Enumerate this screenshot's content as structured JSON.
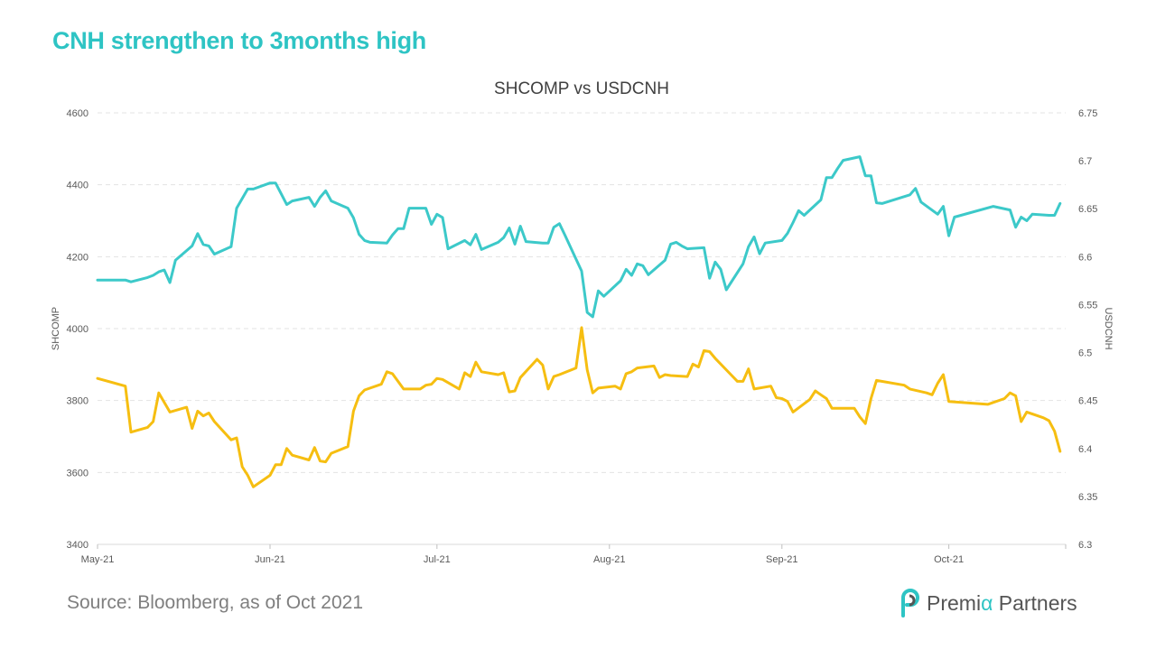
{
  "slide": {
    "title": "CNH strengthen to 3months high",
    "source": "Source:  Bloomberg,  as of Oct 2021",
    "logo": {
      "part1": "Premi",
      "alpha": "α",
      "part2": " Partners"
    }
  },
  "chart_data": {
    "type": "line",
    "title": "SHCOMP vs USDCNH",
    "ylabel": "SHCOMP",
    "y2label": "USDCNH",
    "ylim": [
      3400,
      4600
    ],
    "y2lim": [
      6.3,
      6.75
    ],
    "yticks": [
      "3400",
      "3600",
      "3800",
      "4000",
      "4200",
      "4400",
      "4600"
    ],
    "y2ticks": [
      "6.3",
      "6.35",
      "6.4",
      "6.45",
      "6.5",
      "6.55",
      "6.6",
      "6.65",
      "6.7",
      "6.75"
    ],
    "xlim": [
      "2021-05-01",
      "2021-10-22"
    ],
    "xticks": [
      {
        "date": "2021-05-01",
        "label": "May-21"
      },
      {
        "date": "2021-06-01",
        "label": "Jun-21"
      },
      {
        "date": "2021-07-01",
        "label": "Jul-21"
      },
      {
        "date": "2021-08-01",
        "label": "Aug-21"
      },
      {
        "date": "2021-09-01",
        "label": "Sep-21"
      },
      {
        "date": "2021-10-01",
        "label": "Oct-21"
      }
    ],
    "grid": true,
    "colors": {
      "SHCOMP": "#3CC9C9",
      "USDCNH": "#F6BE11"
    },
    "series": [
      {
        "key": "SHCOMP",
        "axis": "left",
        "points": [
          [
            "2021-05-01",
            4135
          ],
          [
            "2021-05-06",
            4135
          ],
          [
            "2021-05-07",
            4130
          ],
          [
            "2021-05-10",
            4142
          ],
          [
            "2021-05-11",
            4148
          ],
          [
            "2021-05-12",
            4158
          ],
          [
            "2021-05-13",
            4163
          ],
          [
            "2021-05-14",
            4128
          ],
          [
            "2021-05-15",
            4190
          ],
          [
            "2021-05-18",
            4230
          ],
          [
            "2021-05-19",
            4264
          ],
          [
            "2021-05-20",
            4234
          ],
          [
            "2021-05-21",
            4230
          ],
          [
            "2021-05-22",
            4207
          ],
          [
            "2021-05-25",
            4228
          ],
          [
            "2021-05-26",
            4335
          ],
          [
            "2021-05-28",
            4388
          ],
          [
            "2021-05-29",
            4388
          ],
          [
            "2021-06-01",
            4405
          ],
          [
            "2021-06-02",
            4405
          ],
          [
            "2021-06-03",
            4375
          ],
          [
            "2021-06-04",
            4345
          ],
          [
            "2021-06-05",
            4355
          ],
          [
            "2021-06-08",
            4365
          ],
          [
            "2021-06-09",
            4340
          ],
          [
            "2021-06-10",
            4365
          ],
          [
            "2021-06-11",
            4383
          ],
          [
            "2021-06-12",
            4355
          ],
          [
            "2021-06-15",
            4335
          ],
          [
            "2021-06-16",
            4308
          ],
          [
            "2021-06-17",
            4262
          ],
          [
            "2021-06-18",
            4245
          ],
          [
            "2021-06-19",
            4240
          ],
          [
            "2021-06-22",
            4238
          ],
          [
            "2021-06-23",
            4260
          ],
          [
            "2021-06-24",
            4278
          ],
          [
            "2021-06-25",
            4278
          ],
          [
            "2021-06-26",
            4335
          ],
          [
            "2021-06-29",
            4335
          ],
          [
            "2021-06-30",
            4290
          ],
          [
            "2021-07-01",
            4318
          ],
          [
            "2021-07-02",
            4309
          ],
          [
            "2021-07-03",
            4222
          ],
          [
            "2021-07-06",
            4245
          ],
          [
            "2021-07-07",
            4233
          ],
          [
            "2021-07-08",
            4262
          ],
          [
            "2021-07-09",
            4220
          ],
          [
            "2021-07-12",
            4240
          ],
          [
            "2021-07-13",
            4253
          ],
          [
            "2021-07-14",
            4280
          ],
          [
            "2021-07-15",
            4235
          ],
          [
            "2021-07-16",
            4285
          ],
          [
            "2021-07-17",
            4242
          ],
          [
            "2021-07-20",
            4238
          ],
          [
            "2021-07-21",
            4238
          ],
          [
            "2021-07-22",
            4282
          ],
          [
            "2021-07-23",
            4292
          ],
          [
            "2021-07-24",
            4260
          ],
          [
            "2021-07-27",
            4160
          ],
          [
            "2021-07-28",
            4045
          ],
          [
            "2021-07-29",
            4033
          ],
          [
            "2021-07-30",
            4105
          ],
          [
            "2021-07-31",
            4090
          ],
          [
            "2021-08-03",
            4133
          ],
          [
            "2021-08-04",
            4165
          ],
          [
            "2021-08-05",
            4148
          ],
          [
            "2021-08-06",
            4180
          ],
          [
            "2021-08-07",
            4175
          ],
          [
            "2021-08-08",
            4150
          ],
          [
            "2021-08-11",
            4190
          ],
          [
            "2021-08-12",
            4235
          ],
          [
            "2021-08-13",
            4240
          ],
          [
            "2021-08-14",
            4230
          ],
          [
            "2021-08-15",
            4222
          ],
          [
            "2021-08-18",
            4225
          ],
          [
            "2021-08-19",
            4140
          ],
          [
            "2021-08-20",
            4185
          ],
          [
            "2021-08-21",
            4165
          ],
          [
            "2021-08-22",
            4108
          ],
          [
            "2021-08-25",
            4180
          ],
          [
            "2021-08-26",
            4228
          ],
          [
            "2021-08-27",
            4255
          ],
          [
            "2021-08-28",
            4208
          ],
          [
            "2021-08-29",
            4238
          ],
          [
            "2021-09-01",
            4245
          ],
          [
            "2021-09-02",
            4265
          ],
          [
            "2021-09-03",
            4295
          ],
          [
            "2021-09-04",
            4328
          ],
          [
            "2021-09-05",
            4315
          ],
          [
            "2021-09-08",
            4358
          ],
          [
            "2021-09-09",
            4420
          ],
          [
            "2021-09-10",
            4420
          ],
          [
            "2021-09-11",
            4445
          ],
          [
            "2021-09-12",
            4468
          ],
          [
            "2021-09-15",
            4478
          ],
          [
            "2021-09-16",
            4425
          ],
          [
            "2021-09-17",
            4425
          ],
          [
            "2021-09-18",
            4350
          ],
          [
            "2021-09-19",
            4348
          ],
          [
            "2021-09-24",
            4372
          ],
          [
            "2021-09-25",
            4390
          ],
          [
            "2021-09-26",
            4352
          ],
          [
            "2021-09-29",
            4318
          ],
          [
            "2021-09-30",
            4340
          ],
          [
            "2021-10-01",
            4258
          ],
          [
            "2021-10-02",
            4310
          ],
          [
            "2021-10-09",
            4340
          ],
          [
            "2021-10-12",
            4330
          ],
          [
            "2021-10-13",
            4282
          ],
          [
            "2021-10-14",
            4310
          ],
          [
            "2021-10-15",
            4300
          ],
          [
            "2021-10-16",
            4318
          ],
          [
            "2021-10-19",
            4315
          ],
          [
            "2021-10-20",
            4315
          ],
          [
            "2021-10-21",
            4348
          ]
        ]
      },
      {
        "key": "USDCNH",
        "axis": "right",
        "points": [
          [
            "2021-05-01",
            6.473
          ],
          [
            "2021-05-06",
            6.465
          ],
          [
            "2021-05-07",
            6.417
          ],
          [
            "2021-05-10",
            6.422
          ],
          [
            "2021-05-11",
            6.428
          ],
          [
            "2021-05-12",
            6.458
          ],
          [
            "2021-05-13",
            6.448
          ],
          [
            "2021-05-14",
            6.438
          ],
          [
            "2021-05-17",
            6.443
          ],
          [
            "2021-05-18",
            6.421
          ],
          [
            "2021-05-19",
            6.439
          ],
          [
            "2021-05-20",
            6.434
          ],
          [
            "2021-05-21",
            6.437
          ],
          [
            "2021-05-22",
            6.428
          ],
          [
            "2021-05-25",
            6.409
          ],
          [
            "2021-05-26",
            6.411
          ],
          [
            "2021-05-27",
            6.381
          ],
          [
            "2021-05-28",
            6.372
          ],
          [
            "2021-05-29",
            6.36
          ],
          [
            "2021-06-01",
            6.372
          ],
          [
            "2021-06-02",
            6.383
          ],
          [
            "2021-06-03",
            6.383
          ],
          [
            "2021-06-04",
            6.4
          ],
          [
            "2021-06-05",
            6.393
          ],
          [
            "2021-06-08",
            6.388
          ],
          [
            "2021-06-09",
            6.401
          ],
          [
            "2021-06-10",
            6.387
          ],
          [
            "2021-06-11",
            6.386
          ],
          [
            "2021-06-12",
            6.395
          ],
          [
            "2021-06-15",
            6.402
          ],
          [
            "2021-06-16",
            6.439
          ],
          [
            "2021-06-17",
            6.455
          ],
          [
            "2021-06-18",
            6.461
          ],
          [
            "2021-06-21",
            6.467
          ],
          [
            "2021-06-22",
            6.48
          ],
          [
            "2021-06-23",
            6.478
          ],
          [
            "2021-06-24",
            6.47
          ],
          [
            "2021-06-25",
            6.462
          ],
          [
            "2021-06-28",
            6.462
          ],
          [
            "2021-06-29",
            6.466
          ],
          [
            "2021-06-30",
            6.467
          ],
          [
            "2021-07-01",
            6.473
          ],
          [
            "2021-07-02",
            6.472
          ],
          [
            "2021-07-05",
            6.462
          ],
          [
            "2021-07-06",
            6.479
          ],
          [
            "2021-07-07",
            6.475
          ],
          [
            "2021-07-08",
            6.49
          ],
          [
            "2021-07-09",
            6.48
          ],
          [
            "2021-07-12",
            6.477
          ],
          [
            "2021-07-13",
            6.479
          ],
          [
            "2021-07-14",
            6.459
          ],
          [
            "2021-07-15",
            6.46
          ],
          [
            "2021-07-16",
            6.474
          ],
          [
            "2021-07-19",
            6.493
          ],
          [
            "2021-07-20",
            6.487
          ],
          [
            "2021-07-21",
            6.462
          ],
          [
            "2021-07-22",
            6.475
          ],
          [
            "2021-07-23",
            6.477
          ],
          [
            "2021-07-26",
            6.484
          ],
          [
            "2021-07-27",
            6.526
          ],
          [
            "2021-07-28",
            6.482
          ],
          [
            "2021-07-29",
            6.458
          ],
          [
            "2021-07-30",
            6.463
          ],
          [
            "2021-08-02",
            6.465
          ],
          [
            "2021-08-03",
            6.462
          ],
          [
            "2021-08-04",
            6.478
          ],
          [
            "2021-08-05",
            6.48
          ],
          [
            "2021-08-06",
            6.484
          ],
          [
            "2021-08-09",
            6.486
          ],
          [
            "2021-08-10",
            6.474
          ],
          [
            "2021-08-11",
            6.477
          ],
          [
            "2021-08-12",
            6.476
          ],
          [
            "2021-08-15",
            6.475
          ],
          [
            "2021-08-16",
            6.488
          ],
          [
            "2021-08-17",
            6.485
          ],
          [
            "2021-08-18",
            6.502
          ],
          [
            "2021-08-19",
            6.501
          ],
          [
            "2021-08-20",
            6.494
          ],
          [
            "2021-08-23",
            6.476
          ],
          [
            "2021-08-24",
            6.47
          ],
          [
            "2021-08-25",
            6.47
          ],
          [
            "2021-08-26",
            6.483
          ],
          [
            "2021-08-27",
            6.462
          ],
          [
            "2021-08-30",
            6.465
          ],
          [
            "2021-08-31",
            6.453
          ],
          [
            "2021-09-01",
            6.452
          ],
          [
            "2021-09-02",
            6.449
          ],
          [
            "2021-09-03",
            6.438
          ],
          [
            "2021-09-06",
            6.451
          ],
          [
            "2021-09-07",
            6.46
          ],
          [
            "2021-09-08",
            6.456
          ],
          [
            "2021-09-09",
            6.452
          ],
          [
            "2021-09-10",
            6.442
          ],
          [
            "2021-09-13",
            6.442
          ],
          [
            "2021-09-14",
            6.442
          ],
          [
            "2021-09-15",
            6.433
          ],
          [
            "2021-09-16",
            6.426
          ],
          [
            "2021-09-17",
            6.452
          ],
          [
            "2021-09-18",
            6.471
          ],
          [
            "2021-09-23",
            6.466
          ],
          [
            "2021-09-24",
            6.462
          ],
          [
            "2021-09-27",
            6.458
          ],
          [
            "2021-09-28",
            6.456
          ],
          [
            "2021-09-29",
            6.468
          ],
          [
            "2021-09-30",
            6.477
          ],
          [
            "2021-10-01",
            6.449
          ],
          [
            "2021-10-08",
            6.446
          ],
          [
            "2021-10-11",
            6.452
          ],
          [
            "2021-10-12",
            6.458
          ],
          [
            "2021-10-13",
            6.455
          ],
          [
            "2021-10-14",
            6.428
          ],
          [
            "2021-10-15",
            6.438
          ],
          [
            "2021-10-18",
            6.432
          ],
          [
            "2021-10-19",
            6.429
          ],
          [
            "2021-10-20",
            6.418
          ],
          [
            "2021-10-21",
            6.397
          ]
        ]
      }
    ]
  }
}
